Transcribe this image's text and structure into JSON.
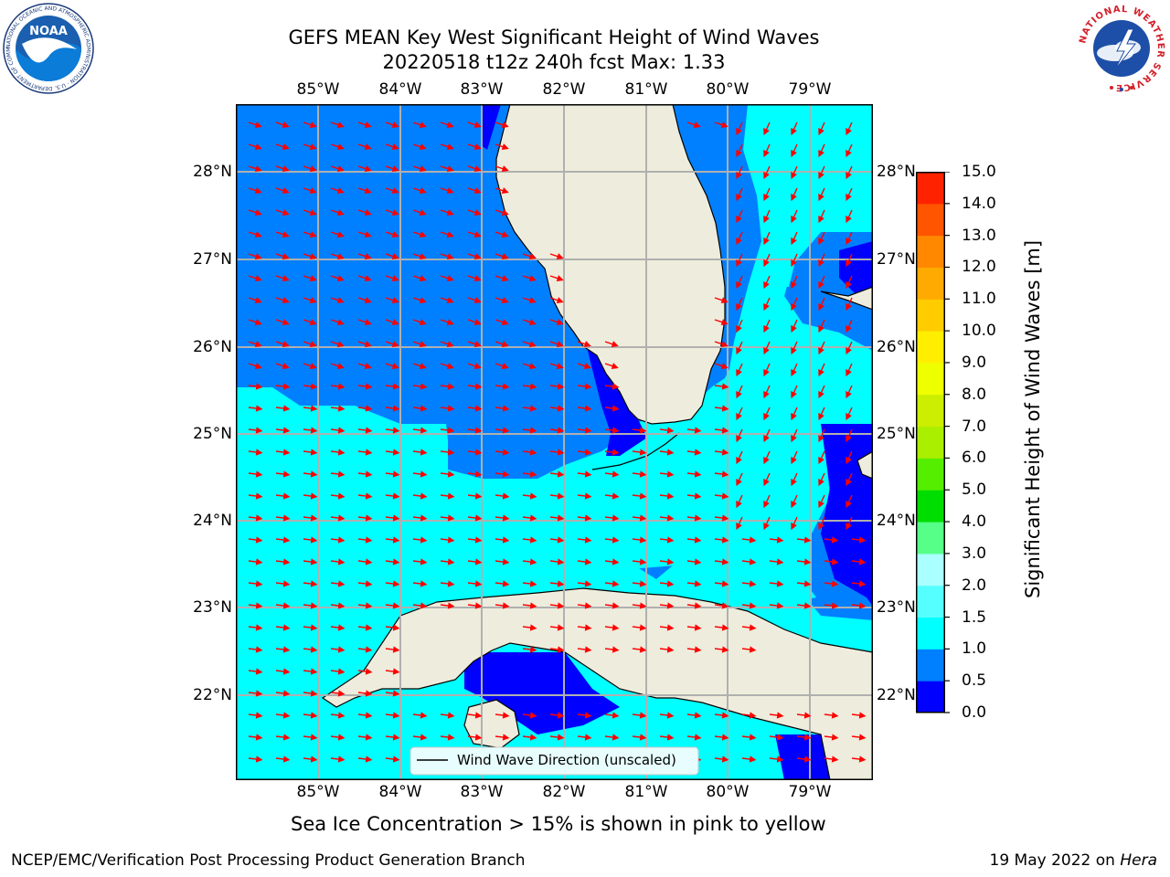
{
  "title": {
    "line1": "GEFS MEAN Key West Significant Height of Wind Waves",
    "line2": "20220518 t12z 240h fcst   Max: 1.33"
  },
  "map": {
    "lon_ticks": [
      "85°W",
      "84°W",
      "83°W",
      "82°W",
      "81°W",
      "80°W",
      "79°W"
    ],
    "lat_ticks": [
      "28°N",
      "27°N",
      "26°N",
      "25°N",
      "24°N",
      "23°N",
      "22°N"
    ],
    "legend_label": "Wind Wave Direction (unscaled)",
    "colors": {
      "land": "#eeecdc",
      "level_0_05": "#0000ff",
      "level_05_10": "#0080ff",
      "level_10_15": "#00ffff",
      "arrow": "#ff0000",
      "grid": "#b0b0b0"
    }
  },
  "colorbar": {
    "label": "Significant Height of Wind Waves [m]",
    "ticks": [
      "0.0",
      "0.5",
      "1.0",
      "1.5",
      "2.0",
      "3.0",
      "4.0",
      "5.0",
      "6.0",
      "7.0",
      "8.0",
      "9.0",
      "10.0",
      "11.0",
      "12.0",
      "13.0",
      "14.0",
      "15.0"
    ],
    "colors": [
      "#0000ff",
      "#0080ff",
      "#00ffff",
      "#55ffff",
      "#aaffff",
      "#55ff88",
      "#00dd00",
      "#55ee00",
      "#aaee00",
      "#ccee00",
      "#eeff00",
      "#ffee00",
      "#ffcc00",
      "#ffaa00",
      "#ff8800",
      "#ff5500",
      "#ff2200"
    ]
  },
  "logos": {
    "noaa_text": "NOAA",
    "noaa_ring": "NATIONAL OCEANIC AND ATMOSPHERIC ADMINISTRATION · U.S. DEPARTMENT OF COMMERCE",
    "nws_ring": "NATIONAL WEATHER SERVICE"
  },
  "footer": {
    "note": "Sea Ice Concentration > 15% is shown in pink to yellow",
    "left": "NCEP/EMC/Verification Post Processing Product Generation Branch",
    "right_date": "19 May 2022 on",
    "right_machine": "Hera"
  }
}
